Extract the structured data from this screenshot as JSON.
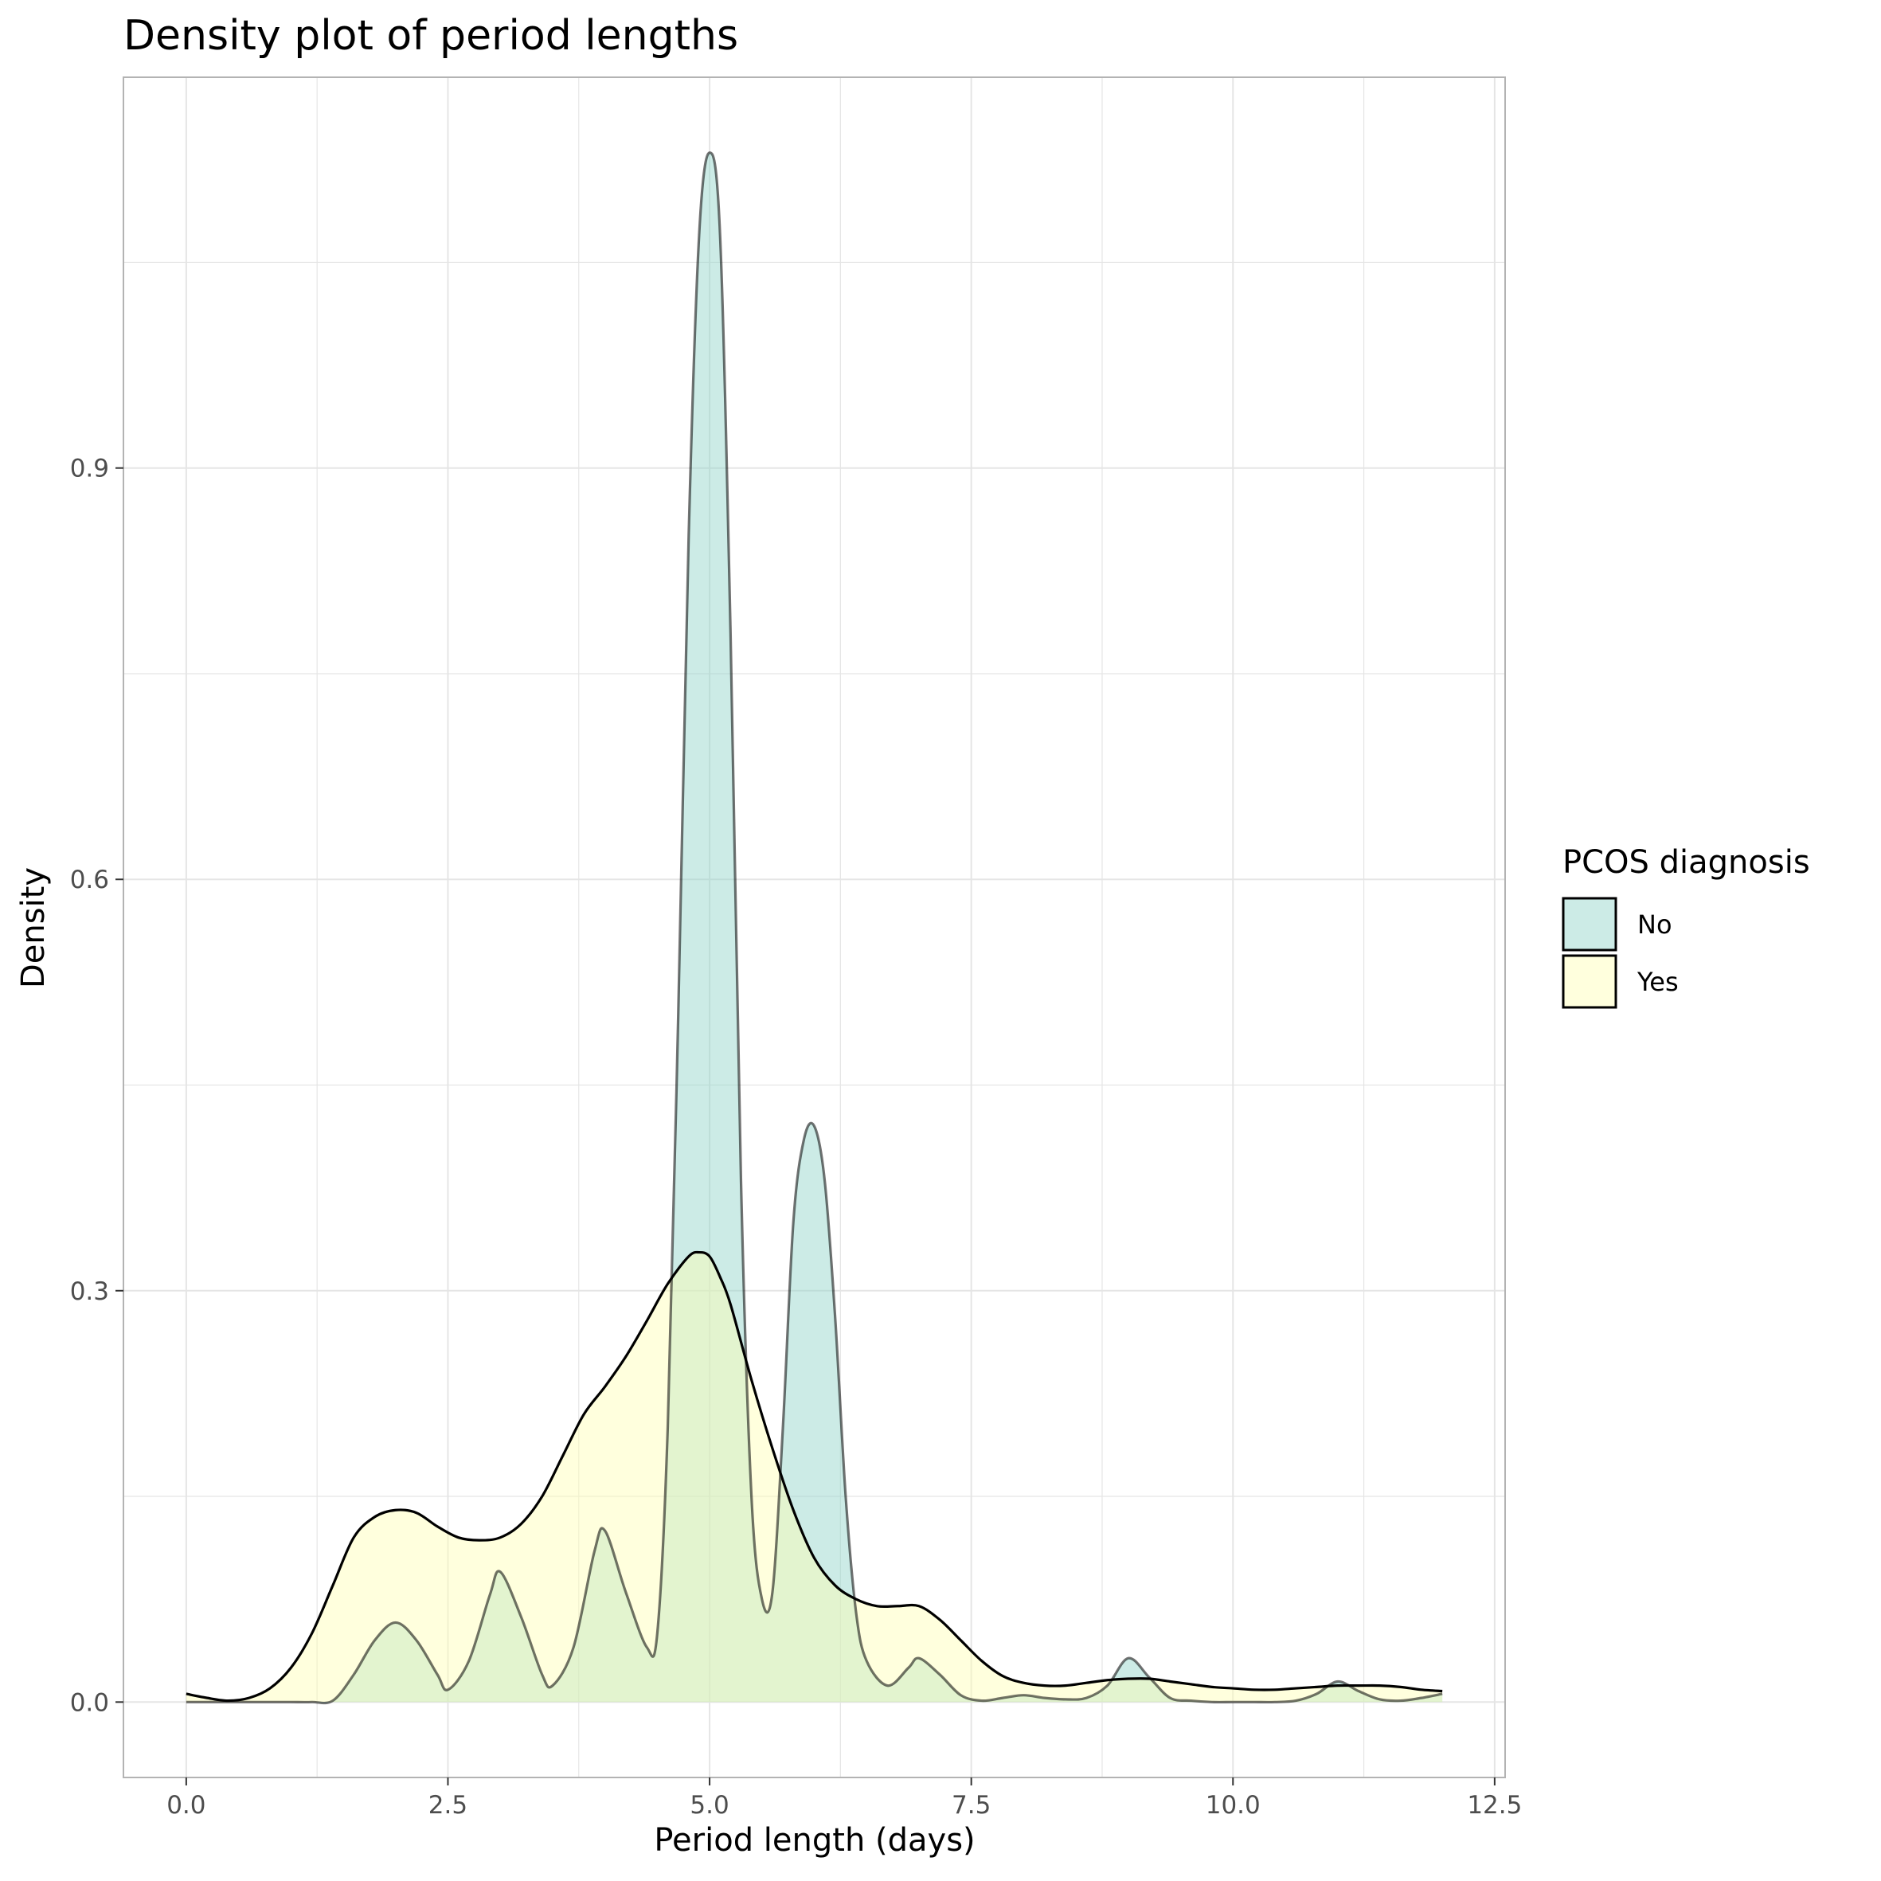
{
  "chart_data": {
    "type": "area",
    "title": "Density plot of period lengths",
    "xlabel": "Period length (days)",
    "ylabel": "Density",
    "xlim": [
      -0.6,
      12.6
    ],
    "ylim": [
      -0.055,
      1.185
    ],
    "x_ticks": [
      0,
      2.5,
      5,
      7.5,
      10,
      12.5
    ],
    "x_tick_labels": [
      "0.0",
      "2.5",
      "5.0",
      "7.5",
      "10.0",
      "12.5"
    ],
    "y_ticks": [
      0,
      0.3,
      0.6,
      0.9
    ],
    "y_tick_labels": [
      "0.0",
      "0.3",
      "0.6",
      "0.9"
    ],
    "grid": true,
    "legend": {
      "title": "PCOS diagnosis",
      "position": "right",
      "entries": [
        "No",
        "Yes"
      ]
    },
    "colors": {
      "No": "#8dd3c7",
      "Yes": "#ffffb3",
      "outline": "#000000",
      "panel_border": "#b3b3b3",
      "grid": "#e5e5e5"
    },
    "fill_alpha": 0.45,
    "series": [
      {
        "name": "No",
        "x": [
          0,
          0.2,
          0.4,
          0.6,
          0.8,
          1.0,
          1.2,
          1.4,
          1.6,
          1.8,
          2.0,
          2.2,
          2.4,
          2.5,
          2.7,
          2.9,
          3.0,
          3.2,
          3.4,
          3.5,
          3.7,
          3.9,
          4.0,
          4.2,
          4.4,
          4.5,
          4.6,
          4.7,
          4.8,
          4.9,
          5.0,
          5.1,
          5.2,
          5.3,
          5.4,
          5.5,
          5.6,
          5.7,
          5.8,
          5.9,
          6.0,
          6.1,
          6.2,
          6.3,
          6.4,
          6.5,
          6.7,
          6.9,
          7.0,
          7.2,
          7.4,
          7.6,
          7.8,
          8.0,
          8.2,
          8.4,
          8.6,
          8.8,
          9.0,
          9.2,
          9.4,
          9.6,
          9.8,
          10.0,
          10.2,
          10.4,
          10.6,
          10.8,
          11.0,
          11.2,
          11.4,
          11.6,
          11.8,
          12.0
        ],
        "y": [
          0,
          0,
          0,
          0,
          0,
          0,
          0,
          0.001,
          0.02,
          0.045,
          0.058,
          0.045,
          0.02,
          0.009,
          0.03,
          0.078,
          0.095,
          0.062,
          0.02,
          0.012,
          0.04,
          0.11,
          0.125,
          0.08,
          0.04,
          0.05,
          0.2,
          0.5,
          0.85,
          1.07,
          1.13,
          1.07,
          0.78,
          0.38,
          0.15,
          0.075,
          0.08,
          0.2,
          0.35,
          0.41,
          0.42,
          0.38,
          0.28,
          0.15,
          0.065,
          0.03,
          0.012,
          0.025,
          0.032,
          0.02,
          0.005,
          0.001,
          0.003,
          0.005,
          0.003,
          0.002,
          0.003,
          0.012,
          0.032,
          0.018,
          0.003,
          0.001,
          0,
          0,
          0,
          0,
          0.001,
          0.006,
          0.015,
          0.008,
          0.002,
          0.001,
          0.003,
          0.006
        ]
      },
      {
        "name": "Yes",
        "x": [
          0,
          0.2,
          0.4,
          0.6,
          0.8,
          1.0,
          1.2,
          1.4,
          1.6,
          1.8,
          2.0,
          2.2,
          2.4,
          2.6,
          2.8,
          3.0,
          3.2,
          3.4,
          3.6,
          3.8,
          4.0,
          4.2,
          4.4,
          4.6,
          4.8,
          4.9,
          5.0,
          5.1,
          5.2,
          5.4,
          5.6,
          5.8,
          6.0,
          6.2,
          6.4,
          6.6,
          6.8,
          7.0,
          7.2,
          7.4,
          7.6,
          7.8,
          8.0,
          8.2,
          8.4,
          8.6,
          8.8,
          9.0,
          9.2,
          9.4,
          9.6,
          9.8,
          10.0,
          10.2,
          10.4,
          10.6,
          10.8,
          11.0,
          11.2,
          11.4,
          11.6,
          11.8,
          12.0
        ],
        "y": [
          0.006,
          0.003,
          0.001,
          0.003,
          0.01,
          0.025,
          0.05,
          0.085,
          0.12,
          0.135,
          0.14,
          0.138,
          0.128,
          0.12,
          0.118,
          0.12,
          0.13,
          0.15,
          0.18,
          0.21,
          0.23,
          0.252,
          0.278,
          0.305,
          0.325,
          0.328,
          0.325,
          0.31,
          0.29,
          0.235,
          0.185,
          0.14,
          0.105,
          0.085,
          0.075,
          0.07,
          0.07,
          0.07,
          0.06,
          0.045,
          0.03,
          0.019,
          0.014,
          0.012,
          0.012,
          0.014,
          0.016,
          0.017,
          0.017,
          0.015,
          0.013,
          0.011,
          0.01,
          0.009,
          0.009,
          0.01,
          0.011,
          0.012,
          0.012,
          0.012,
          0.011,
          0.009,
          0.008
        ]
      }
    ]
  }
}
